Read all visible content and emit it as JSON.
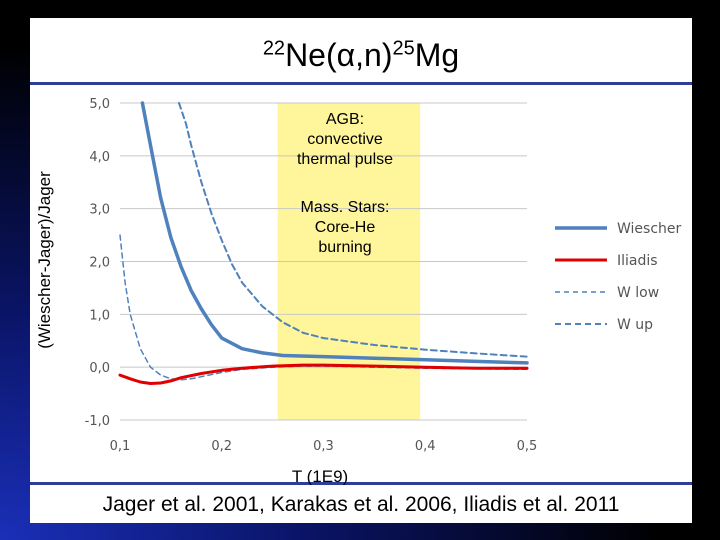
{
  "slide": {
    "title_base": "Ne(",
    "title_mass1": "22",
    "title_alpha": "α",
    "title_mid": ",n)",
    "title_mass2": "25",
    "title_end": "Mg",
    "footer": "Jager et al. 2001, Karakas et al. 2006, Iliadis et al. 2011"
  },
  "annotations": {
    "region_top": [
      "AGB:",
      "convective",
      "thermal pulse"
    ],
    "region_bottom": [
      "Mass. Stars:",
      "Core-He",
      "burning"
    ]
  },
  "chart_data": {
    "type": "line",
    "title": "",
    "xlabel": "T (1E9)",
    "ylabel": "(Wiescher-Jager)/Jager",
    "xlim": [
      0.1,
      0.5
    ],
    "ylim": [
      -1.0,
      5.0
    ],
    "x_ticks": [
      "0,1",
      "0,2",
      "0,3",
      "0,4",
      "0,5"
    ],
    "y_ticks": [
      "-1,0",
      "0,0",
      "1,0",
      "2,0",
      "3,0",
      "4,0",
      "5,0"
    ],
    "grid": "horizontal",
    "legend_position": "right",
    "highlight_band": {
      "x_range": [
        0.255,
        0.395
      ],
      "color": "#fff59a"
    },
    "series": [
      {
        "name": "Wiescher",
        "color": "#4f81bd",
        "style": "solid",
        "width": 3.5,
        "x": [
          0.122,
          0.13,
          0.14,
          0.15,
          0.16,
          0.17,
          0.18,
          0.19,
          0.2,
          0.22,
          0.24,
          0.26,
          0.3,
          0.35,
          0.4,
          0.45,
          0.5
        ],
        "y": [
          5.0,
          4.2,
          3.2,
          2.45,
          1.9,
          1.45,
          1.1,
          0.8,
          0.55,
          0.35,
          0.27,
          0.22,
          0.2,
          0.17,
          0.14,
          0.11,
          0.08
        ]
      },
      {
        "name": "Iliadis",
        "color": "#e00000",
        "style": "solid",
        "width": 3,
        "x": [
          0.1,
          0.11,
          0.12,
          0.13,
          0.14,
          0.15,
          0.16,
          0.18,
          0.2,
          0.22,
          0.25,
          0.28,
          0.3,
          0.35,
          0.4,
          0.45,
          0.5
        ],
        "y": [
          -0.15,
          -0.22,
          -0.28,
          -0.31,
          -0.3,
          -0.26,
          -0.2,
          -0.12,
          -0.06,
          -0.02,
          0.02,
          0.04,
          0.04,
          0.02,
          0.0,
          -0.02,
          -0.02
        ]
      },
      {
        "name": "W low",
        "color": "#4f81bd",
        "style": "dashed-thin",
        "width": 1.5,
        "x": [
          0.1,
          0.105,
          0.11,
          0.12,
          0.13,
          0.14,
          0.15,
          0.16,
          0.17,
          0.18,
          0.2,
          0.22,
          0.25,
          0.28,
          0.3,
          0.35,
          0.4,
          0.45,
          0.5
        ],
        "y": [
          2.5,
          1.6,
          1.0,
          0.35,
          0.0,
          -0.15,
          -0.22,
          -0.24,
          -0.22,
          -0.18,
          -0.1,
          -0.04,
          0.0,
          0.02,
          0.02,
          0.0,
          -0.02,
          -0.03,
          -0.04
        ]
      },
      {
        "name": "W up",
        "color": "#4f81bd",
        "style": "dashed",
        "width": 2,
        "x": [
          0.158,
          0.165,
          0.17,
          0.18,
          0.19,
          0.2,
          0.21,
          0.22,
          0.24,
          0.26,
          0.28,
          0.3,
          0.35,
          0.4,
          0.45,
          0.5
        ],
        "y": [
          5.0,
          4.6,
          4.2,
          3.5,
          2.9,
          2.4,
          1.95,
          1.6,
          1.15,
          0.85,
          0.65,
          0.55,
          0.42,
          0.33,
          0.26,
          0.2
        ]
      }
    ]
  }
}
